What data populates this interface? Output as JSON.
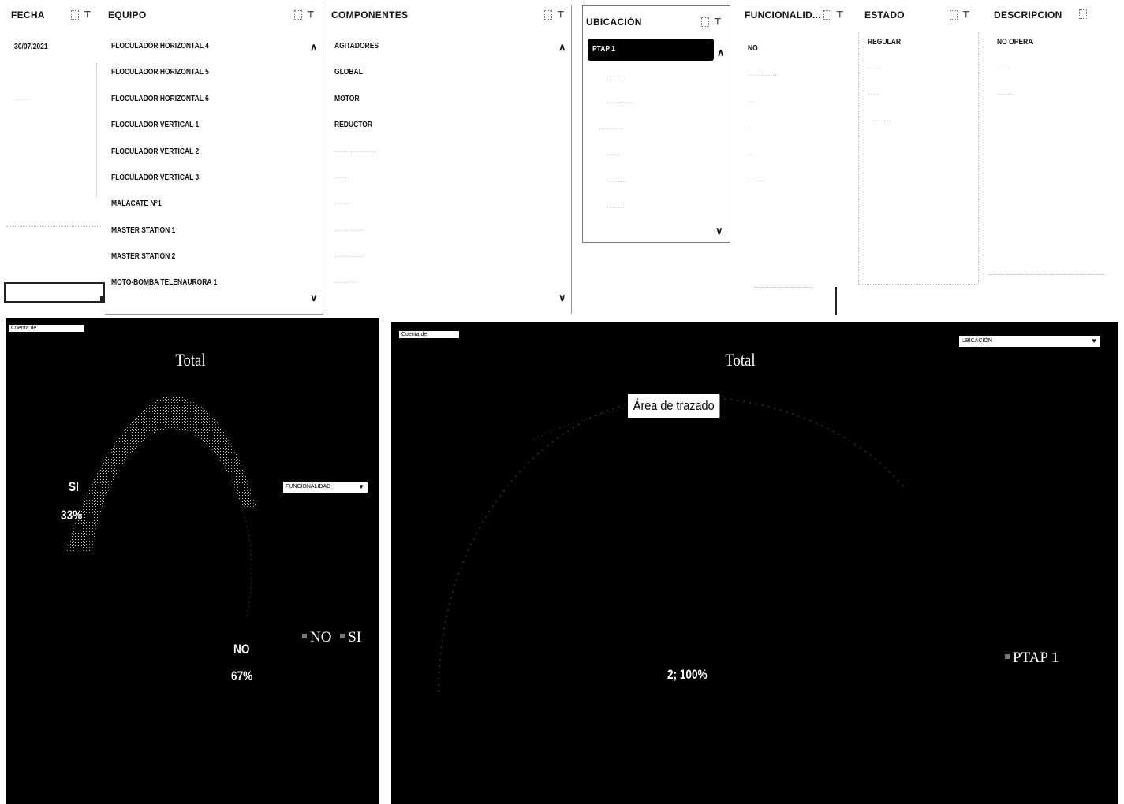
{
  "slicers": {
    "fecha": {
      "header": "FECHA",
      "items": [
        "30/07/2021"
      ]
    },
    "equipo": {
      "header": "EQUIPO",
      "items": [
        "FLOCULADOR HORIZONTAL 4",
        "FLOCULADOR HORIZONTAL 5",
        "FLOCULADOR HORIZONTAL 6",
        "FLOCULADOR VERTICAL 1",
        "FLOCULADOR VERTICAL 2",
        "FLOCULADOR VERTICAL 3",
        "MALACATE N°1",
        "MASTER STATION 1",
        "MASTER STATION 2",
        "MOTO-BOMBA TELENAURORA 1"
      ]
    },
    "componentes": {
      "header": "COMPONENTES",
      "items": [
        "AGITADORES",
        "GLOBAL",
        "MOTOR",
        "REDUCTOR"
      ]
    },
    "ubicacion": {
      "header": "UBICACIÓN",
      "items": [
        "PTAP 1"
      ]
    },
    "funcionalidad": {
      "header": "FUNCIONALID...",
      "items": [
        "NO"
      ]
    },
    "estado": {
      "header": "ESTADO",
      "items": [
        "REGULAR"
      ]
    },
    "descripcion": {
      "header": "DESCRIPCION",
      "items": [
        "NO OPERA"
      ]
    }
  },
  "chart_left": {
    "chip": "Cuenta de",
    "title": "Total",
    "filter_label": "FUNCIONALIDAD",
    "labels": {
      "si_name": "SI",
      "si_pct": "33%",
      "no_name": "NO",
      "no_pct": "67%"
    },
    "legend": [
      "NO",
      "SI"
    ]
  },
  "chart_right": {
    "chip": "Cuenta de",
    "title": "Total",
    "filter_label": "UBICACIÓN",
    "tooltip": "Área de trazado",
    "data_label": "2; 100%",
    "legend": [
      "PTAP 1"
    ]
  },
  "chart_data": [
    {
      "type": "pie",
      "title": "Total",
      "categories": [
        "SI",
        "NO"
      ],
      "values": [
        33,
        67
      ],
      "unit": "%",
      "legend_position": "right"
    },
    {
      "type": "pie",
      "title": "Total",
      "categories": [
        "PTAP 1"
      ],
      "values": [
        2
      ],
      "percent": [
        100
      ],
      "legend_position": "right"
    }
  ],
  "colors": {
    "panel": "#000000",
    "selected": "#000000",
    "text": "#111111",
    "faint": "#b9b9b9"
  }
}
